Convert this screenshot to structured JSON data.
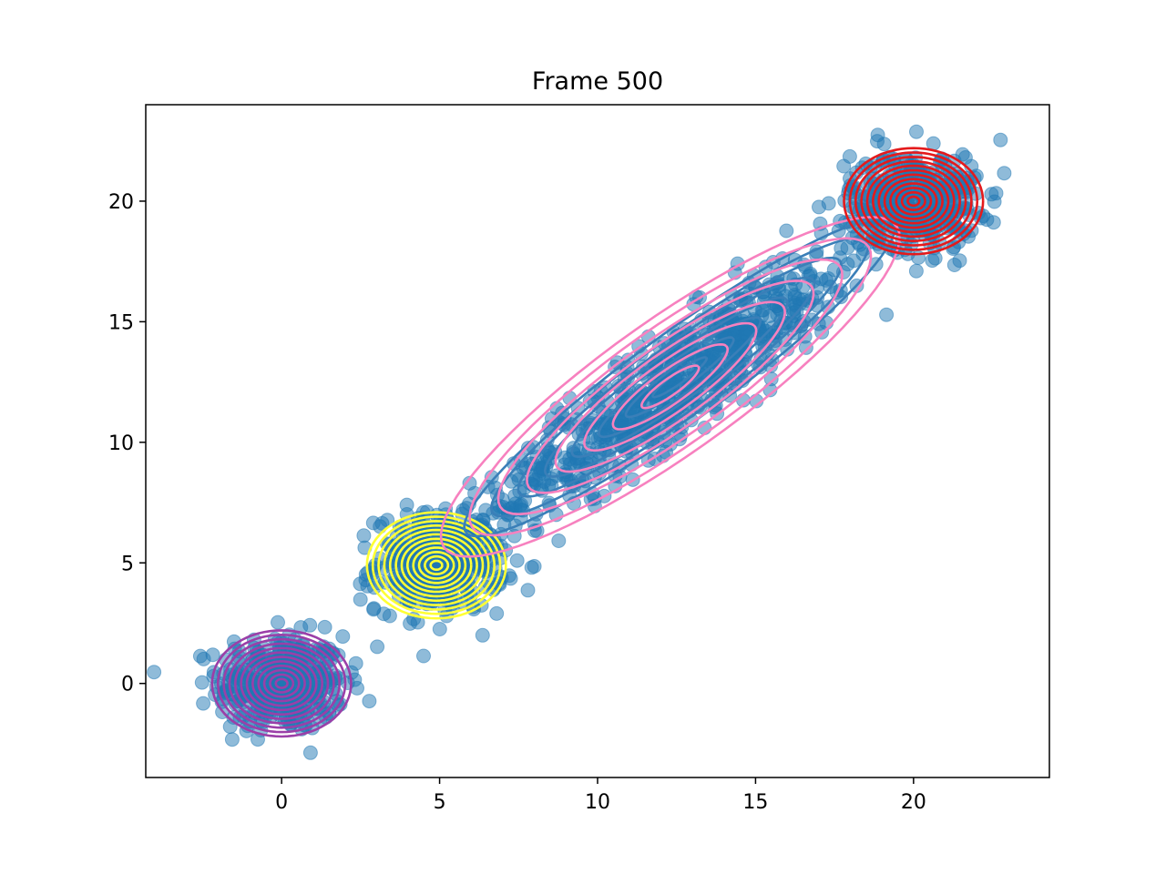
{
  "chart_data": {
    "type": "scatter",
    "title": "Frame 500",
    "xlabel": "",
    "ylabel": "",
    "xlim": [
      -4.3,
      24.3
    ],
    "ylim": [
      -3.9,
      24.0
    ],
    "x_ticks": [
      0,
      5,
      10,
      15,
      20
    ],
    "y_ticks": [
      0,
      5,
      10,
      15,
      20
    ],
    "x_tick_labels": [
      "0",
      "5",
      "10",
      "15",
      "20"
    ],
    "y_tick_labels": [
      "0",
      "5",
      "10",
      "15",
      "20"
    ],
    "grid": false,
    "legend": "none",
    "point_color": "#1f77b4",
    "point_alpha": 0.5,
    "clusters": [
      {
        "center": [
          0,
          0
        ],
        "spread": [
          1.0,
          1.0
        ],
        "correlation": 0.0,
        "count": 400
      },
      {
        "center": [
          5,
          5
        ],
        "spread": [
          1.0,
          1.0
        ],
        "correlation": 0.0,
        "count": 400
      },
      {
        "center": [
          12.5,
          12.5
        ],
        "spread": [
          3.2,
          3.2
        ],
        "correlation": 0.93,
        "count": 800
      },
      {
        "center": [
          20,
          20
        ],
        "spread": [
          1.0,
          1.0
        ],
        "correlation": 0.0,
        "count": 400
      }
    ],
    "fitted_components": [
      {
        "color": "#9b3fa8",
        "mean": [
          0,
          0
        ],
        "spread": [
          1.0,
          1.0
        ],
        "correlation": 0.0,
        "levels": 12
      },
      {
        "color": "#ffff33",
        "mean": [
          4.9,
          4.9
        ],
        "spread": [
          1.0,
          1.0
        ],
        "correlation": 0.0,
        "levels": 12
      },
      {
        "color": "#3a7fb8",
        "mean": [
          12.6,
          12.7
        ],
        "spread": [
          3.1,
          3.0
        ],
        "correlation": 0.94,
        "levels": 8
      },
      {
        "color": "#f781bf",
        "mean": [
          12.3,
          12.3
        ],
        "spread": [
          3.3,
          3.2
        ],
        "correlation": 0.88,
        "levels": 8
      },
      {
        "color": "#e41a1c",
        "mean": [
          20,
          20
        ],
        "spread": [
          1.0,
          1.0
        ],
        "correlation": 0.0,
        "levels": 12
      }
    ]
  }
}
